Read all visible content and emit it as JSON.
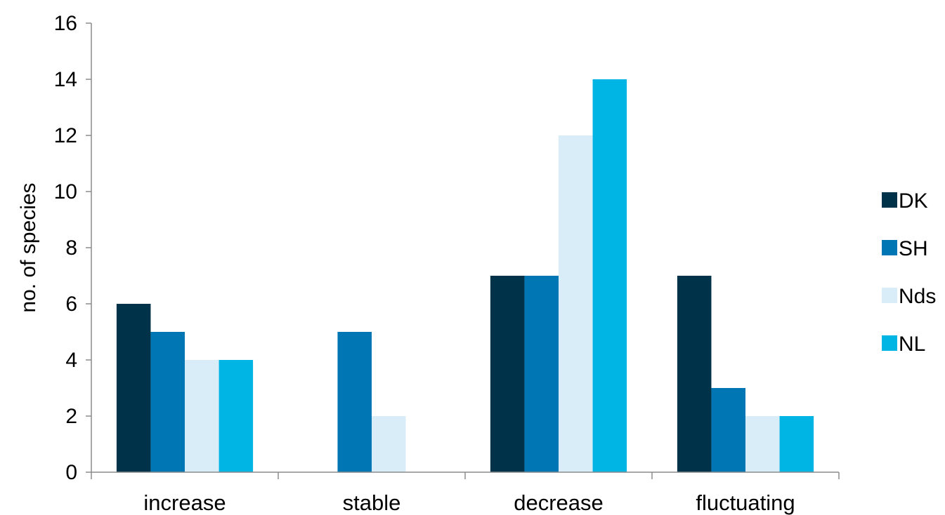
{
  "chart_data": {
    "type": "bar",
    "title": "",
    "xlabel": "",
    "ylabel": "no. of species",
    "ylim": [
      0,
      16
    ],
    "yticks": [
      0,
      2,
      4,
      6,
      8,
      10,
      12,
      14,
      16
    ],
    "grid": false,
    "legend_position": "right",
    "categories": [
      "increase",
      "stable",
      "decrease",
      "fluctuating"
    ],
    "series": [
      {
        "name": "DK",
        "color": "#00324a",
        "values": [
          6,
          0,
          7,
          7
        ]
      },
      {
        "name": "SH",
        "color": "#0077b4",
        "values": [
          5,
          5,
          7,
          3
        ]
      },
      {
        "name": "Nds",
        "color": "#d9edf8",
        "values": [
          4,
          2,
          12,
          2
        ]
      },
      {
        "name": "NL",
        "color": "#00b4e4",
        "values": [
          4,
          0,
          14,
          2
        ]
      }
    ]
  }
}
